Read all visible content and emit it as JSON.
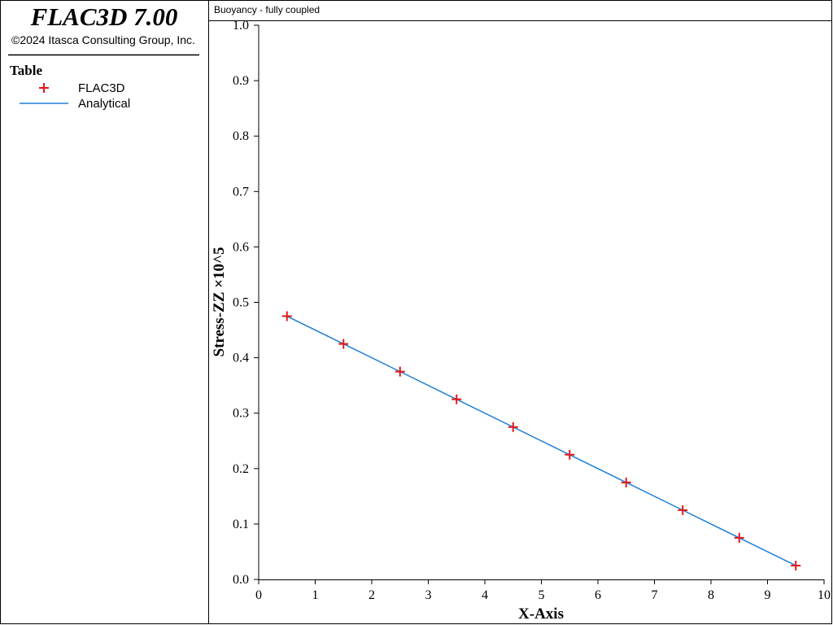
{
  "app": {
    "title": "FLAC3D 7.00",
    "copyright": "©2024 Itasca Consulting Group, Inc.",
    "legend_title": "Table"
  },
  "chart_data": {
    "type": "line",
    "title": "Buoyancy - fully coupled",
    "x_label": "X-Axis",
    "y_label": "Stress-ZZ ×10^5",
    "x": [
      0.5,
      1.5,
      2.5,
      3.5,
      4.5,
      5.5,
      6.5,
      7.5,
      8.5,
      9.5
    ],
    "series": [
      {
        "name": "FLAC3D",
        "color": "#e0181b",
        "marker": "plus",
        "values": [
          0.475,
          0.425,
          0.375,
          0.325,
          0.275,
          0.225,
          0.175,
          0.125,
          0.075,
          0.025
        ]
      },
      {
        "name": "Analytical",
        "color": "#1f7fd8",
        "marker": "line",
        "values": [
          0.475,
          0.425,
          0.375,
          0.325,
          0.275,
          0.225,
          0.175,
          0.125,
          0.075,
          0.025
        ]
      }
    ],
    "xlim": [
      0,
      10
    ],
    "xticks": [
      0,
      1,
      2,
      3,
      4,
      5,
      6,
      7,
      8,
      9,
      10
    ],
    "ylim": [
      0,
      1
    ],
    "yticks": [
      {
        "value": 0,
        "label": "0.0"
      },
      0.1,
      0.2,
      0.3,
      0.4,
      0.5,
      0.6,
      0.7,
      0.8,
      0.9,
      {
        "value": 1,
        "label": "1.0"
      }
    ]
  }
}
